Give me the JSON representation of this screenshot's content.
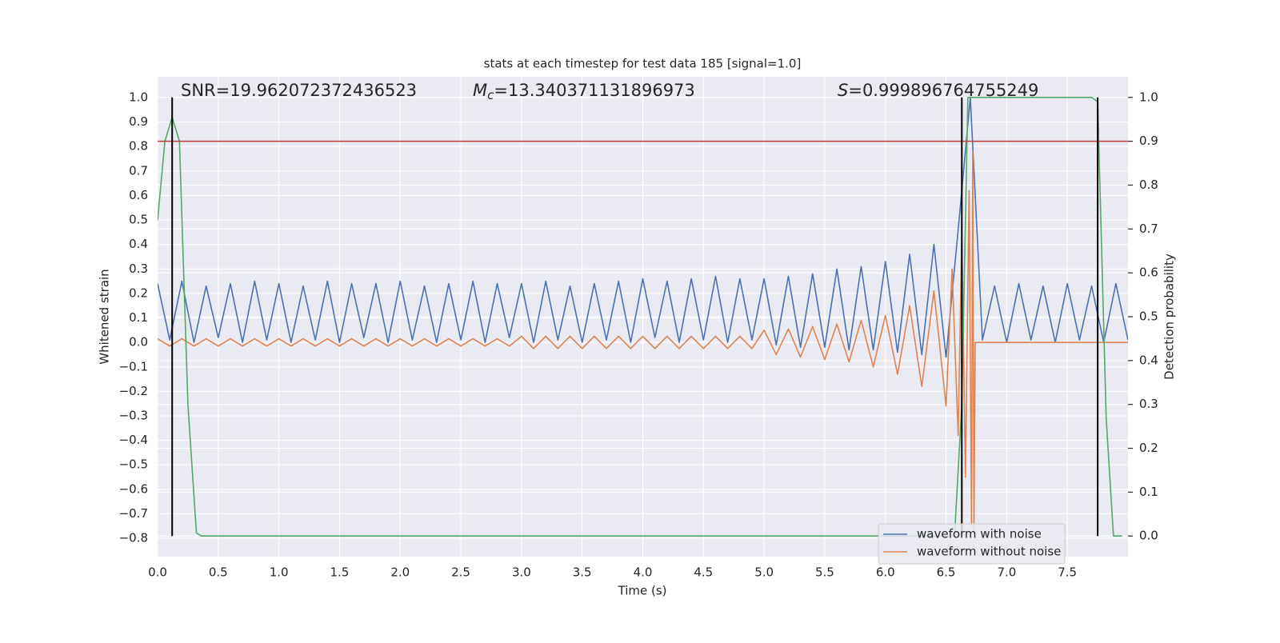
{
  "chart_data": {
    "type": "line",
    "title": "stats at each timestep for test data 185 [signal=1.0]",
    "xlabel": "Time (s)",
    "ylabel": "Whitened strain",
    "y2label": "Detection probability",
    "xlim": [
      0,
      8.0
    ],
    "ylim": [
      -0.875,
      1.085
    ],
    "y2lim": [
      -0.047,
      1.047
    ],
    "xticks": [
      {
        "value": 0,
        "label": "0.0"
      },
      0.5,
      {
        "value": 1,
        "label": "1.0"
      },
      1.5,
      {
        "value": 2,
        "label": "2.0"
      },
      2.5,
      {
        "value": 3,
        "label": "3.0"
      },
      3.5,
      {
        "value": 4,
        "label": "4.0"
      },
      4.5,
      {
        "value": 5,
        "label": "5.0"
      },
      5.5,
      {
        "value": 6,
        "label": "6.0"
      },
      6.5,
      {
        "value": 7,
        "label": "7.0"
      },
      7.5
    ],
    "yticks": [
      {
        "value": -0.8,
        "label": "−0.8"
      },
      {
        "value": -0.7,
        "label": "−0.7"
      },
      {
        "value": -0.6,
        "label": "−0.6"
      },
      {
        "value": -0.5,
        "label": "−0.5"
      },
      {
        "value": -0.4,
        "label": "−0.4"
      },
      {
        "value": -0.3,
        "label": "−0.3"
      },
      {
        "value": -0.2,
        "label": "−0.2"
      },
      {
        "value": -0.1,
        "label": "−0.1"
      },
      {
        "value": 0,
        "label": "0.0"
      },
      0.1,
      0.2,
      0.3,
      0.4,
      0.5,
      0.6,
      0.7,
      0.8,
      0.9,
      {
        "value": 1,
        "label": "1.0"
      }
    ],
    "y2ticks": [
      {
        "value": 0,
        "label": "0.0"
      },
      0.1,
      0.2,
      0.3,
      0.4,
      0.5,
      0.6,
      0.7,
      0.8,
      0.9,
      {
        "value": 1,
        "label": "1.0"
      }
    ],
    "grid": true,
    "legend": "lower right",
    "series": [
      {
        "name": "waveform with noise",
        "color": "#4c72b0",
        "x": [
          0,
          0.1,
          0.2,
          0.3,
          0.4,
          0.5,
          0.6,
          0.7,
          0.8,
          0.9,
          1,
          1.1,
          1.2,
          1.3,
          1.4,
          1.5,
          1.6,
          1.7,
          1.8,
          1.9,
          2,
          2.1,
          2.2,
          2.3,
          2.4,
          2.5,
          2.6,
          2.7,
          2.8,
          2.9,
          3,
          3.1,
          3.2,
          3.3,
          3.4,
          3.5,
          3.6,
          3.7,
          3.8,
          3.9,
          4,
          4.1,
          4.2,
          4.3,
          4.4,
          4.5,
          4.6,
          4.7,
          4.8,
          4.9,
          5,
          5.1,
          5.2,
          5.3,
          5.4,
          5.5,
          5.6,
          5.7,
          5.8,
          5.9,
          6,
          6.1,
          6.2,
          6.3,
          6.4,
          6.5,
          6.6,
          6.7,
          6.8,
          6.9,
          7,
          7.1,
          7.2,
          7.3,
          7.4,
          7.5,
          7.6,
          7.7,
          7.8,
          7.9,
          8
        ],
        "values": [
          0.24,
          0.01,
          0.25,
          0,
          0.23,
          0.02,
          0.24,
          0,
          0.25,
          0.01,
          0.24,
          0,
          0.23,
          0.01,
          0.25,
          0,
          0.24,
          0.02,
          0.24,
          0,
          0.25,
          0.01,
          0.23,
          0,
          0.24,
          0.01,
          0.25,
          0,
          0.24,
          0.02,
          0.24,
          0,
          0.25,
          0.01,
          0.23,
          0,
          0.24,
          0.01,
          0.25,
          0,
          0.26,
          0.02,
          0.25,
          0,
          0.26,
          0.01,
          0.27,
          0,
          0.26,
          0.01,
          0.26,
          -0.01,
          0.27,
          -0.02,
          0.28,
          -0.02,
          0.3,
          -0.03,
          0.31,
          -0.03,
          0.33,
          -0.04,
          0.36,
          -0.05,
          0.4,
          -0.06,
          0.46,
          1.0,
          0.01,
          0.23,
          0,
          0.24,
          0.01,
          0.23,
          0,
          0.24,
          0.01,
          0.23,
          0,
          0.24,
          0.01
        ]
      },
      {
        "name": "waveform without noise",
        "color": "#dd8452",
        "x": [
          0,
          0.1,
          0.2,
          0.3,
          0.4,
          0.5,
          0.6,
          0.7,
          0.8,
          0.9,
          1,
          1.1,
          1.2,
          1.3,
          1.4,
          1.5,
          1.6,
          1.7,
          1.8,
          1.9,
          2,
          2.1,
          2.2,
          2.3,
          2.4,
          2.5,
          2.6,
          2.7,
          2.8,
          2.9,
          3,
          3.1,
          3.2,
          3.3,
          3.4,
          3.5,
          3.6,
          3.7,
          3.8,
          3.9,
          4,
          4.1,
          4.2,
          4.3,
          4.4,
          4.5,
          4.6,
          4.7,
          4.8,
          4.9,
          5,
          5.1,
          5.2,
          5.3,
          5.4,
          5.5,
          5.6,
          5.7,
          5.8,
          5.9,
          6,
          6.1,
          6.2,
          6.3,
          6.4,
          6.5,
          6.55,
          6.6,
          6.63,
          6.66,
          6.69,
          6.71,
          6.72,
          6.73,
          6.74,
          8
        ],
        "values": [
          0.015,
          -0.015,
          0.015,
          -0.015,
          0.015,
          -0.015,
          0.015,
          -0.015,
          0.015,
          -0.015,
          0.015,
          -0.015,
          0.015,
          -0.015,
          0.015,
          -0.015,
          0.015,
          -0.015,
          0.015,
          -0.015,
          0.015,
          -0.015,
          0.015,
          -0.015,
          0.015,
          -0.015,
          0.015,
          -0.015,
          0.015,
          -0.015,
          0.025,
          -0.025,
          0.025,
          -0.025,
          0.025,
          -0.025,
          0.025,
          -0.025,
          0.025,
          -0.025,
          0.025,
          -0.025,
          0.025,
          -0.025,
          0.025,
          -0.025,
          0.025,
          -0.025,
          0.025,
          -0.025,
          0.05,
          -0.05,
          0.055,
          -0.06,
          0.065,
          -0.07,
          0.075,
          -0.08,
          0.09,
          -0.1,
          0.11,
          -0.13,
          0.15,
          -0.18,
          0.21,
          -0.26,
          0.3,
          -0.38,
          0.45,
          -0.55,
          0.62,
          -0.75,
          0.78,
          -0.78,
          0,
          0
        ]
      },
      {
        "color": "#55a868",
        "axis": "y2",
        "x": [
          0,
          0.06,
          0.12,
          0.18,
          0.25,
          0.32,
          0.36,
          6.57,
          6.63,
          6.68,
          7.7,
          7.75,
          7.82,
          7.88,
          7.95
        ],
        "values": [
          0.72,
          0.9,
          0.955,
          0.9,
          0.3,
          0.007,
          0,
          0,
          0.3,
          1.0,
          1.0,
          0.99,
          0.27,
          0,
          0
        ]
      }
    ],
    "vlines": {
      "x": [
        0.12,
        6.63,
        7.75
      ],
      "axis": "y2",
      "ymin": 0,
      "ymax": 1,
      "color": "#000000"
    },
    "hline": {
      "value": 0.9,
      "axis": "y2",
      "color": "#c03d3e"
    },
    "annotations": [
      {
        "text": "SNR=19.962072372436523"
      },
      {
        "symbol": "M",
        "subscript": "c",
        "text": "=13.340371131896973"
      },
      {
        "symbol": "S",
        "text": "=0.999896764755249"
      }
    ]
  }
}
